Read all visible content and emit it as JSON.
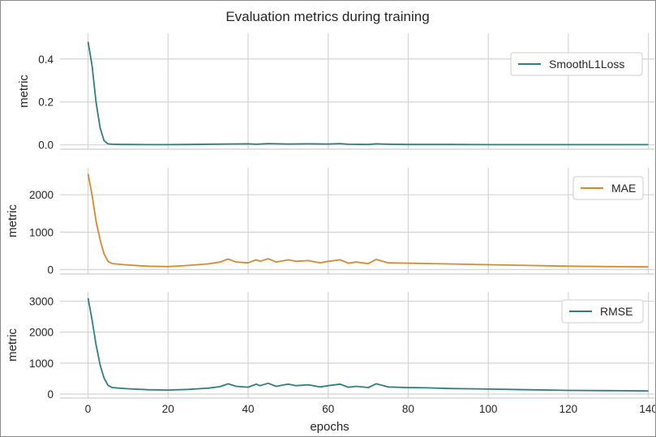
{
  "title": "Evaluation metrics during training",
  "chart_data": [
    {
      "type": "line",
      "title": "",
      "xlabel": "",
      "ylabel": "metric",
      "xlim": [
        -7,
        141.5
      ],
      "ylim": [
        -0.02,
        0.52
      ],
      "xticks": [
        0,
        20,
        40,
        60,
        80,
        100,
        120,
        140
      ],
      "yticks": [
        0.0,
        0.2,
        0.4
      ],
      "ytick_labels": [
        "0.0",
        "0.2",
        "0.4"
      ],
      "grid": true,
      "legend_position": "top-right",
      "series": [
        {
          "name": "SmoothL1Loss",
          "color": "#2e7f7e",
          "x": [
            0,
            1,
            2,
            3,
            4,
            5,
            6,
            8,
            10,
            15,
            20,
            25,
            30,
            35,
            40,
            42,
            45,
            50,
            55,
            60,
            63,
            65,
            70,
            72,
            75,
            80,
            85,
            90,
            100,
            110,
            120,
            130,
            140
          ],
          "y": [
            0.48,
            0.37,
            0.2,
            0.08,
            0.02,
            0.005,
            0.003,
            0.002,
            0.002,
            0.001,
            0.001,
            0.002,
            0.003,
            0.004,
            0.005,
            0.003,
            0.006,
            0.004,
            0.005,
            0.004,
            0.006,
            0.003,
            0.002,
            0.005,
            0.003,
            0.002,
            0.002,
            0.002,
            0.001,
            0.001,
            0.001,
            0.001,
            0.001
          ]
        }
      ]
    },
    {
      "type": "line",
      "title": "",
      "xlabel": "",
      "ylabel": "metric",
      "xlim": [
        -7,
        141.5
      ],
      "ylim": [
        -120,
        2720
      ],
      "xticks": [
        0,
        20,
        40,
        60,
        80,
        100,
        120,
        140
      ],
      "yticks": [
        0,
        1000,
        2000
      ],
      "ytick_labels": [
        "0",
        "1000",
        "2000"
      ],
      "grid": true,
      "legend_position": "top-right",
      "series": [
        {
          "name": "MAE",
          "color": "#d68a2e",
          "x": [
            0,
            1,
            2,
            3,
            4,
            5,
            6,
            8,
            10,
            15,
            20,
            25,
            30,
            33,
            35,
            37,
            40,
            42,
            43,
            45,
            47,
            50,
            52,
            55,
            58,
            60,
            63,
            65,
            67,
            70,
            72,
            75,
            80,
            85,
            90,
            95,
            100,
            110,
            120,
            130,
            140
          ],
          "y": [
            2560,
            2000,
            1300,
            800,
            420,
            220,
            160,
            140,
            120,
            90,
            80,
            110,
            150,
            200,
            280,
            200,
            180,
            260,
            220,
            290,
            200,
            260,
            220,
            240,
            180,
            220,
            260,
            170,
            200,
            160,
            270,
            180,
            170,
            160,
            150,
            140,
            130,
            110,
            90,
            80,
            70
          ]
        }
      ]
    },
    {
      "type": "line",
      "title": "",
      "xlabel": "epochs",
      "ylabel": "metric",
      "xlim": [
        -7,
        141.5
      ],
      "ylim": [
        -130,
        3300
      ],
      "xticks": [
        0,
        20,
        40,
        60,
        80,
        100,
        120,
        140
      ],
      "xtick_labels": [
        "0",
        "20",
        "40",
        "60",
        "80",
        "100",
        "120",
        "140"
      ],
      "yticks": [
        0,
        1000,
        2000,
        3000
      ],
      "ytick_labels": [
        "0",
        "1000",
        "2000",
        "3000"
      ],
      "grid": true,
      "legend_position": "top-right",
      "series": [
        {
          "name": "RMSE",
          "color": "#2e7f7e",
          "x": [
            0,
            1,
            2,
            3,
            4,
            5,
            6,
            8,
            10,
            15,
            20,
            25,
            30,
            33,
            35,
            37,
            40,
            42,
            43,
            45,
            47,
            50,
            52,
            55,
            58,
            60,
            63,
            65,
            67,
            70,
            72,
            75,
            80,
            85,
            90,
            95,
            100,
            110,
            120,
            130,
            140
          ],
          "y": [
            3100,
            2400,
            1600,
            950,
            520,
            280,
            210,
            190,
            170,
            140,
            130,
            150,
            190,
            240,
            330,
            250,
            220,
            320,
            270,
            350,
            250,
            320,
            270,
            300,
            230,
            270,
            320,
            220,
            250,
            210,
            330,
            230,
            210,
            200,
            180,
            170,
            160,
            140,
            120,
            110,
            100
          ]
        }
      ]
    }
  ]
}
